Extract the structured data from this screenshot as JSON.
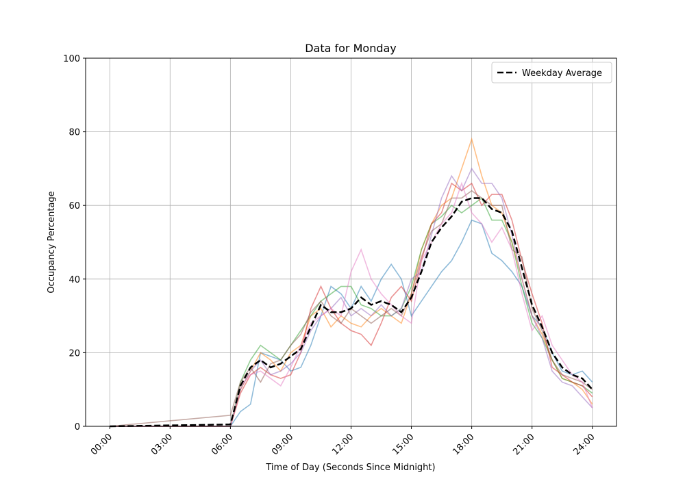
{
  "chart_data": {
    "type": "line",
    "title": "Data for Monday",
    "x_label": "Time of Day (Seconds Since Midnight)",
    "y_label": "Occupancy Percentage",
    "x": [
      0,
      21600,
      23400,
      25200,
      27000,
      28800,
      30600,
      32400,
      34200,
      36000,
      37800,
      39600,
      41400,
      43200,
      45000,
      46800,
      48600,
      50400,
      52200,
      54000,
      55800,
      57600,
      59400,
      61200,
      63000,
      64800,
      66600,
      68400,
      70200,
      72000,
      73800,
      75600,
      77400,
      79200,
      81000,
      82800,
      84600,
      86400
    ],
    "xlim": [
      -4320,
      90720
    ],
    "xticks": [
      {
        "value": 0,
        "label": "00:00"
      },
      {
        "value": 10800,
        "label": "03:00"
      },
      {
        "value": 21600,
        "label": "06:00"
      },
      {
        "value": 32400,
        "label": "09:00"
      },
      {
        "value": 43200,
        "label": "12:00"
      },
      {
        "value": 54000,
        "label": "15:00"
      },
      {
        "value": 64800,
        "label": "18:00"
      },
      {
        "value": 75600,
        "label": "21:00"
      },
      {
        "value": 86400,
        "label": "24:00"
      }
    ],
    "ylim": [
      0,
      100
    ],
    "yticks": [
      0,
      20,
      40,
      60,
      80,
      100
    ],
    "grid": true,
    "legend": "upper right",
    "series": [
      {
        "color": "#1f77b4",
        "alpha": 0.5,
        "values": [
          0,
          0,
          4,
          6,
          20,
          19,
          18,
          15,
          16,
          22,
          30,
          38,
          36,
          32,
          38,
          34,
          40,
          44,
          40,
          30,
          34,
          38,
          42,
          45,
          50,
          56,
          55,
          47,
          45,
          42,
          38,
          30,
          27,
          20,
          15,
          14,
          15,
          12
        ]
      },
      {
        "color": "#ff7f0e",
        "alpha": 0.5,
        "values": [
          0,
          0,
          10,
          15,
          20,
          18,
          15,
          20,
          22,
          30,
          32,
          27,
          30,
          28,
          27,
          30,
          32,
          30,
          28,
          36,
          48,
          55,
          60,
          62,
          70,
          78,
          68,
          60,
          58,
          50,
          40,
          30,
          25,
          18,
          13,
          12,
          10,
          6
        ]
      },
      {
        "color": "#2ca02c",
        "alpha": 0.5,
        "values": [
          0,
          0,
          12,
          18,
          22,
          20,
          18,
          22,
          26,
          30,
          34,
          36,
          38,
          38,
          33,
          32,
          30,
          30,
          32,
          38,
          48,
          55,
          57,
          60,
          58,
          60,
          62,
          56,
          56,
          50,
          38,
          28,
          24,
          18,
          13,
          12,
          11,
          9
        ]
      },
      {
        "color": "#d62728",
        "alpha": 0.5,
        "values": [
          0,
          0,
          9,
          14,
          16,
          14,
          13,
          14,
          20,
          32,
          38,
          32,
          28,
          26,
          25,
          22,
          28,
          35,
          38,
          34,
          45,
          55,
          58,
          66,
          64,
          66,
          60,
          63,
          63,
          56,
          45,
          36,
          28,
          16,
          14,
          12,
          11,
          8
        ]
      },
      {
        "color": "#9467bd",
        "alpha": 0.5,
        "values": [
          0,
          0,
          10,
          15,
          18,
          14,
          15,
          17,
          20,
          26,
          30,
          32,
          35,
          30,
          32,
          30,
          33,
          30,
          32,
          40,
          42,
          52,
          62,
          68,
          64,
          70,
          66,
          66,
          62,
          52,
          40,
          30,
          24,
          15,
          12,
          11,
          8,
          5
        ]
      },
      {
        "color": "#8c564b",
        "alpha": 0.5,
        "values": [
          0,
          3,
          12,
          16,
          12,
          17,
          18,
          22,
          25,
          31,
          34,
          30,
          28,
          32,
          30,
          28,
          30,
          32,
          30,
          36,
          46,
          53,
          55,
          62,
          62,
          64,
          62,
          60,
          60,
          48,
          46,
          32,
          26,
          18,
          14,
          13,
          12,
          10
        ]
      },
      {
        "color": "#e377c2",
        "alpha": 0.5,
        "values": [
          0,
          0,
          11,
          14,
          15,
          13,
          11,
          16,
          22,
          28,
          30,
          32,
          30,
          42,
          48,
          40,
          36,
          33,
          30,
          28,
          45,
          50,
          55,
          58,
          66,
          58,
          55,
          50,
          54,
          48,
          36,
          26,
          30,
          22,
          18,
          14,
          12,
          5
        ]
      },
      {
        "name": "Weekday Average",
        "color": "#000000",
        "linestyle": "dashed",
        "values": [
          0,
          0.5,
          11,
          16,
          18,
          16,
          17,
          19,
          21,
          27,
          33,
          31,
          31,
          32,
          35,
          33,
          34,
          33,
          31,
          35,
          42,
          50,
          54,
          57,
          61,
          62,
          62,
          59,
          58,
          53,
          43,
          33,
          27,
          20,
          16,
          14,
          13,
          10
        ]
      }
    ]
  }
}
